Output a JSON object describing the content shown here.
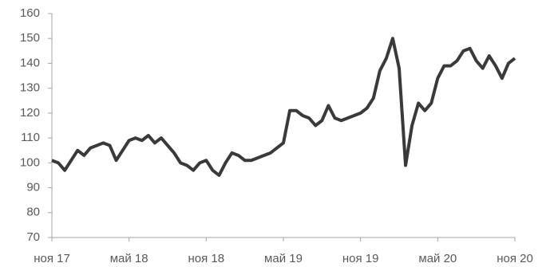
{
  "chart_data": {
    "type": "line",
    "series": [
      {
        "color": "#3a3a3a",
        "values": [
          101,
          100,
          97,
          101,
          105,
          103,
          106,
          107,
          108,
          107,
          101,
          105,
          109,
          110,
          109,
          111,
          108,
          110,
          107,
          104,
          100,
          99,
          97,
          100,
          101,
          97,
          95,
          100,
          104,
          103,
          101,
          101,
          102,
          103,
          104,
          106,
          108,
          121,
          121,
          119,
          118,
          115,
          117,
          123,
          118,
          117,
          118,
          119,
          120,
          122,
          126,
          137,
          142,
          150,
          138,
          99,
          115,
          124,
          121,
          124,
          134,
          139,
          139,
          141,
          145,
          146,
          141,
          138,
          143,
          139,
          134,
          140,
          142
        ]
      }
    ],
    "xlim": [
      0,
      72
    ],
    "xticks": [
      {
        "value": 0,
        "label": "ноя 17"
      },
      {
        "value": 12,
        "label": "май 18"
      },
      {
        "value": 24,
        "label": "ноя 18"
      },
      {
        "value": 36,
        "label": "май 19"
      },
      {
        "value": 48,
        "label": "ноя 19"
      },
      {
        "value": 60,
        "label": "май 20"
      },
      {
        "value": 72,
        "label": "ноя 20"
      }
    ],
    "ylim": [
      70,
      160
    ],
    "yticks": [
      70,
      80,
      90,
      100,
      110,
      120,
      130,
      140,
      150,
      160
    ],
    "grid": false
  }
}
